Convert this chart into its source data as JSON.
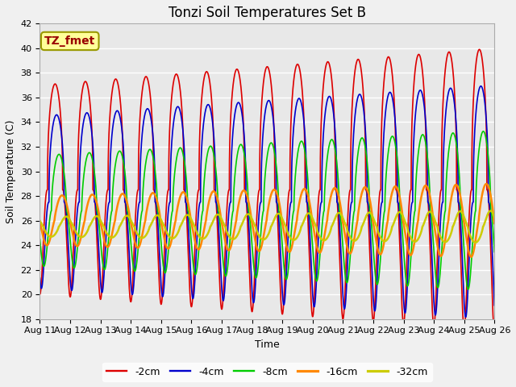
{
  "title": "Tonzi Soil Temperatures Set B",
  "xlabel": "Time",
  "ylabel": "Soil Temperature (C)",
  "ylim": [
    18,
    42
  ],
  "xlim": [
    0,
    15
  ],
  "x_tick_labels": [
    "Aug 11",
    "Aug 12",
    "Aug 13",
    "Aug 14",
    "Aug 15",
    "Aug 16",
    "Aug 17",
    "Aug 18",
    "Aug 19",
    "Aug 20",
    "Aug 21",
    "Aug 22",
    "Aug 23",
    "Aug 24",
    "Aug 25",
    "Aug 26"
  ],
  "legend_labels": [
    "-2cm",
    "-4cm",
    "-8cm",
    "-16cm",
    "-32cm"
  ],
  "legend_colors": [
    "#dd0000",
    "#0000cc",
    "#00cc00",
    "#ff8800",
    "#cccc00"
  ],
  "line_widths": [
    1.2,
    1.2,
    1.2,
    1.8,
    1.8
  ],
  "annotation_text": "TZ_fmet",
  "annotation_color": "#990000",
  "annotation_bg": "#ffff99",
  "annotation_border": "#999900",
  "background_color": "#e8e8e8",
  "grid_color": "#ffffff",
  "title_fontsize": 12,
  "label_fontsize": 9,
  "tick_fontsize": 8,
  "mean_2cm": 28.5,
  "mean_4cm": 27.5,
  "mean_8cm": 26.8,
  "mean_16cm": 26.0,
  "mean_32cm": 25.5,
  "amp_start_2cm": 8.5,
  "amp_end_2cm": 11.5,
  "amp_start_4cm": 7.0,
  "amp_end_4cm": 9.5,
  "amp_start_8cm": 4.5,
  "amp_end_8cm": 6.5,
  "amp_start_16cm": 2.0,
  "amp_end_16cm": 3.0,
  "amp_start_32cm": 0.8,
  "amp_end_32cm": 1.3,
  "phase_2cm": 0.25,
  "phase_4cm": 0.3,
  "phase_8cm": 0.38,
  "phase_16cm": 0.48,
  "phase_32cm": 0.62,
  "sharpness": 2.5
}
